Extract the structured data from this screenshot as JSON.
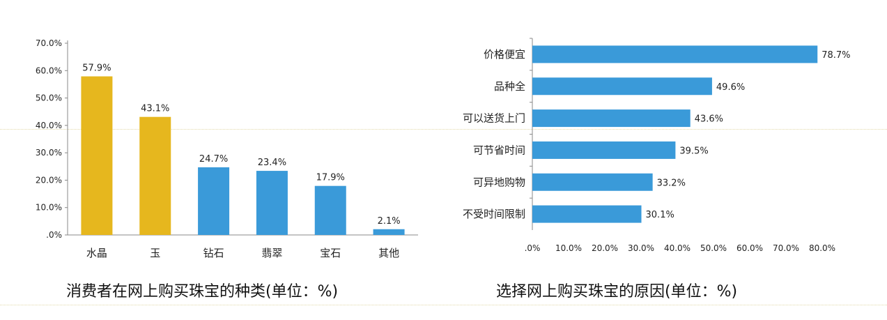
{
  "captions": {
    "left": "消费者在网上购买珠宝的种类(单位：%)",
    "right": "选择网上购买珠宝的原因(单位：%)"
  },
  "colors": {
    "gold": "#E6B71E",
    "blue": "#3A9AD9",
    "axis": "#888888",
    "text": "#222222"
  },
  "chart_data": [
    {
      "type": "bar",
      "orientation": "vertical",
      "title": "消费者在网上购买珠宝的种类(单位：%)",
      "categories": [
        "水晶",
        "玉",
        "钻石",
        "翡翠",
        "宝石",
        "其他"
      ],
      "values": [
        57.9,
        43.1,
        24.7,
        23.4,
        17.9,
        2.1
      ],
      "value_labels": [
        "57.9%",
        "43.1%",
        "24.7%",
        "23.4%",
        "17.9%",
        "2.1%"
      ],
      "bar_colors": [
        "#E6B71E",
        "#E6B71E",
        "#3A9AD9",
        "#3A9AD9",
        "#3A9AD9",
        "#3A9AD9"
      ],
      "ylim": [
        0,
        70
      ],
      "yticks": [
        ".0%",
        "10.0%",
        "20.0%",
        "30.0%",
        "40.0%",
        "50.0%",
        "60.0%",
        "70.0%"
      ],
      "grid": false
    },
    {
      "type": "bar",
      "orientation": "horizontal",
      "title": "选择网上购买珠宝的原因(单位：%)",
      "categories": [
        "价格便宜",
        "品种全",
        "可以送货上门",
        "可节省时间",
        "可异地购物",
        "不受时间限制"
      ],
      "values": [
        78.7,
        49.6,
        43.6,
        39.5,
        33.2,
        30.1
      ],
      "value_labels": [
        "78.7%",
        "49.6%",
        "43.6%",
        "39.5%",
        "33.2%",
        "30.1%"
      ],
      "bar_color": "#3A9AD9",
      "xlim": [
        0,
        80
      ],
      "xticks": [
        ".0%",
        "10.0%",
        "20.0%",
        "30.0%",
        "40.0%",
        "50.0%",
        "60.0%",
        "70.0%",
        "80.0%"
      ],
      "grid": false
    }
  ]
}
